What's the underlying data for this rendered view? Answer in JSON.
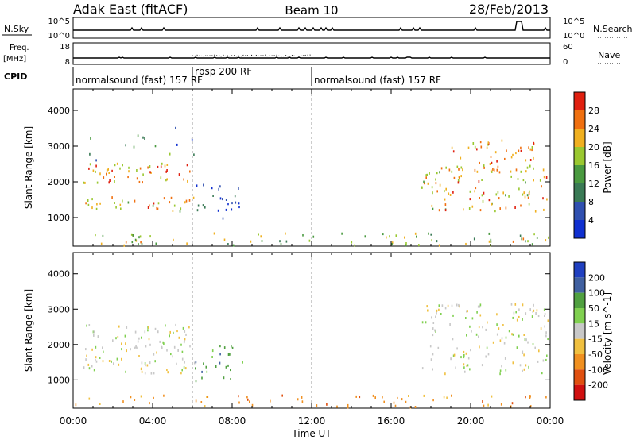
{
  "header": {
    "station": "Adak East (fitACF)",
    "beam": "Beam 10",
    "date": "28/Feb/2013"
  },
  "small_panels": {
    "nsky_label": "N.Sky",
    "nsearch_label": "N.Search",
    "freq_label_1": "Freq.",
    "freq_label_2": "[MHz]",
    "nave_label": "Nave",
    "cpid_label": "CPID",
    "nsky_ticks_left": [
      "10^5",
      "10^0"
    ],
    "nsky_ticks_right": [
      "10^5",
      "10^0"
    ],
    "freq_ticks_left": [
      "18",
      "8"
    ],
    "nave_ticks_right": [
      "60",
      "0"
    ]
  },
  "cpid_segments": [
    {
      "label": "normalsound (fast) 157 RF",
      "start_h": 0.0,
      "end_h": 6.0
    },
    {
      "label": "rbsp 200 RF",
      "start_h": 6.0,
      "end_h": 12.0
    },
    {
      "label": "normalsound (fast) 157 RF",
      "start_h": 12.0,
      "end_h": 24.0
    }
  ],
  "chart_data": [
    {
      "type": "heatmap",
      "name": "power",
      "ylabel": "Slant Range [km]",
      "xlabel": "Time UT",
      "xlim": [
        0,
        24
      ],
      "ylim": [
        200,
        4600
      ],
      "x_ticks": [
        "00:00",
        "04:00",
        "08:00",
        "12:00",
        "16:00",
        "20:00",
        "00:00"
      ],
      "y_ticks": [
        1000,
        2000,
        3000,
        4000
      ],
      "colorbar": {
        "label": "Power [dB]",
        "ticks": [
          4,
          8,
          12,
          16,
          20,
          24,
          28
        ],
        "range": [
          0,
          32
        ]
      },
      "scatter_regions": [
        {
          "t0": 0.5,
          "t1": 6.2,
          "r0": 2000,
          "r1": 2600,
          "value_db": 24,
          "density": 0.6
        },
        {
          "t0": 0.5,
          "t1": 6.2,
          "r0": 1200,
          "r1": 1600,
          "value_db": 22,
          "density": 0.6
        },
        {
          "t0": 0.5,
          "t1": 6.2,
          "r0": 2600,
          "r1": 3600,
          "value_db": 10,
          "density": 0.1
        },
        {
          "t0": 6.0,
          "t1": 8.5,
          "r0": 1000,
          "r1": 2000,
          "value_db": 5,
          "density": 0.4
        },
        {
          "t0": 17.5,
          "t1": 24,
          "r0": 1200,
          "r1": 2500,
          "value_db": 22,
          "density": 0.5
        },
        {
          "t0": 19.0,
          "t1": 24,
          "r0": 2300,
          "r1": 3200,
          "value_db": 24,
          "density": 0.4
        },
        {
          "t0": 0.0,
          "t1": 24,
          "r0": 250,
          "r1": 600,
          "value_db": 18,
          "density": 0.35
        }
      ]
    },
    {
      "type": "heatmap",
      "name": "velocity",
      "ylabel": "Slant Range [km]",
      "xlabel": "Time UT",
      "xlim": [
        0,
        24
      ],
      "ylim": [
        200,
        4600
      ],
      "x_ticks": [
        "00:00",
        "04:00",
        "08:00",
        "12:00",
        "16:00",
        "20:00",
        "00:00"
      ],
      "y_ticks": [
        1000,
        2000,
        3000,
        4000
      ],
      "colorbar": {
        "label": "Velocity [m s^-1]",
        "ticks": [
          "200",
          "100",
          "50",
          "15",
          "-15",
          "-50",
          "-100",
          "-200"
        ]
      },
      "scatter_regions": [
        {
          "t0": 0.5,
          "t1": 6.2,
          "r0": 1200,
          "r1": 2600,
          "value_ms": 0,
          "density": 0.55
        },
        {
          "t0": 6.0,
          "t1": 8.5,
          "r0": 1000,
          "r1": 2000,
          "value_ms": 50,
          "density": 0.4
        },
        {
          "t0": 17.5,
          "t1": 24,
          "r0": 1200,
          "r1": 3200,
          "value_ms": 0,
          "density": 0.45
        },
        {
          "t0": 0.0,
          "t1": 24,
          "r0": 250,
          "r1": 600,
          "value_ms": -50,
          "density": 0.3
        }
      ]
    }
  ]
}
